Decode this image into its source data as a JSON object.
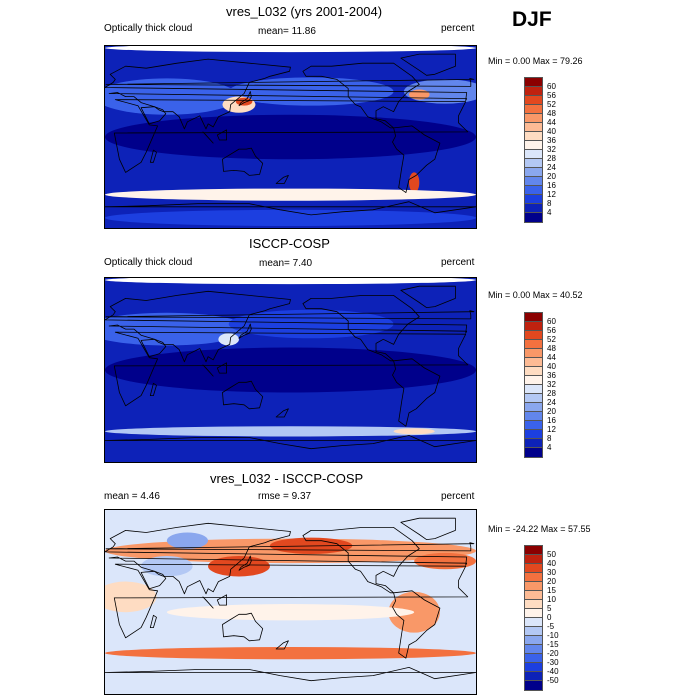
{
  "season": "DJF",
  "panels": [
    {
      "title": "vres_L032 (yrs 2001-2004)",
      "left_label": "Optically thick cloud",
      "center_label": "mean=  11.86",
      "right_label": "percent",
      "minmax": "Min =   0.00 Max =  79.26",
      "style": "abs"
    },
    {
      "title": "ISCCP-COSP",
      "left_label": "Optically thick cloud",
      "center_label": "mean=   7.40",
      "right_label": "percent",
      "minmax": "Min =   0.00 Max =  40.52",
      "style": "abs2"
    },
    {
      "title": "vres_L032 - ISCCP-COSP",
      "left_label": "mean =   4.46",
      "center_label": "rmse =   9.37",
      "right_label": "percent",
      "minmax": "Min = -24.22 Max =  57.55",
      "style": "diff"
    }
  ],
  "colorbars": {
    "abs": {
      "labels": [
        "60",
        "56",
        "52",
        "48",
        "44",
        "40",
        "36",
        "32",
        "28",
        "24",
        "20",
        "16",
        "12",
        "8",
        "4"
      ],
      "colors": [
        "#8b0000",
        "#c0220f",
        "#e2481f",
        "#f3713f",
        "#f99868",
        "#fdbb95",
        "#fedcc2",
        "#fff3ea",
        "#dbe6fa",
        "#b3c8f4",
        "#8aa7ee",
        "#6286ec",
        "#3a62ea",
        "#1c3fe0",
        "#0d22b8",
        "#00008b"
      ]
    },
    "diff": {
      "labels": [
        "50",
        "40",
        "30",
        "20",
        "15",
        "10",
        "5",
        "0",
        "-5",
        "-10",
        "-15",
        "-20",
        "-30",
        "-40",
        "-50"
      ],
      "colors": [
        "#8b0000",
        "#c0220f",
        "#e2481f",
        "#f3713f",
        "#f99868",
        "#fdbb95",
        "#fedcc2",
        "#fff3ea",
        "#dbe6fa",
        "#b3c8f4",
        "#8aa7ee",
        "#6286ec",
        "#3a62ea",
        "#1c3fe0",
        "#0d22b8",
        "#00008b"
      ]
    }
  },
  "chart_data": [
    {
      "type": "heatmap",
      "title": "vres_L032 (yrs 2001-2004)",
      "variable": "Optically thick cloud",
      "units": "percent",
      "season": "DJF",
      "mean": 11.86,
      "min": 0.0,
      "max": 79.26,
      "contour_levels": [
        4,
        8,
        12,
        16,
        20,
        24,
        28,
        32,
        36,
        40,
        44,
        48,
        52,
        56,
        60
      ]
    },
    {
      "type": "heatmap",
      "title": "ISCCP-COSP",
      "variable": "Optically thick cloud",
      "units": "percent",
      "mean": 7.4,
      "min": 0.0,
      "max": 40.52,
      "contour_levels": [
        4,
        8,
        12,
        16,
        20,
        24,
        28,
        32,
        36,
        40,
        44,
        48,
        52,
        56,
        60
      ]
    },
    {
      "type": "heatmap",
      "title": "vres_L032 - ISCCP-COSP",
      "units": "percent",
      "mean": 4.46,
      "rmse": 9.37,
      "min": -24.22,
      "max": 57.55,
      "contour_levels": [
        -50,
        -40,
        -30,
        -20,
        -15,
        -10,
        -5,
        0,
        5,
        10,
        15,
        20,
        30,
        40,
        50
      ]
    }
  ]
}
